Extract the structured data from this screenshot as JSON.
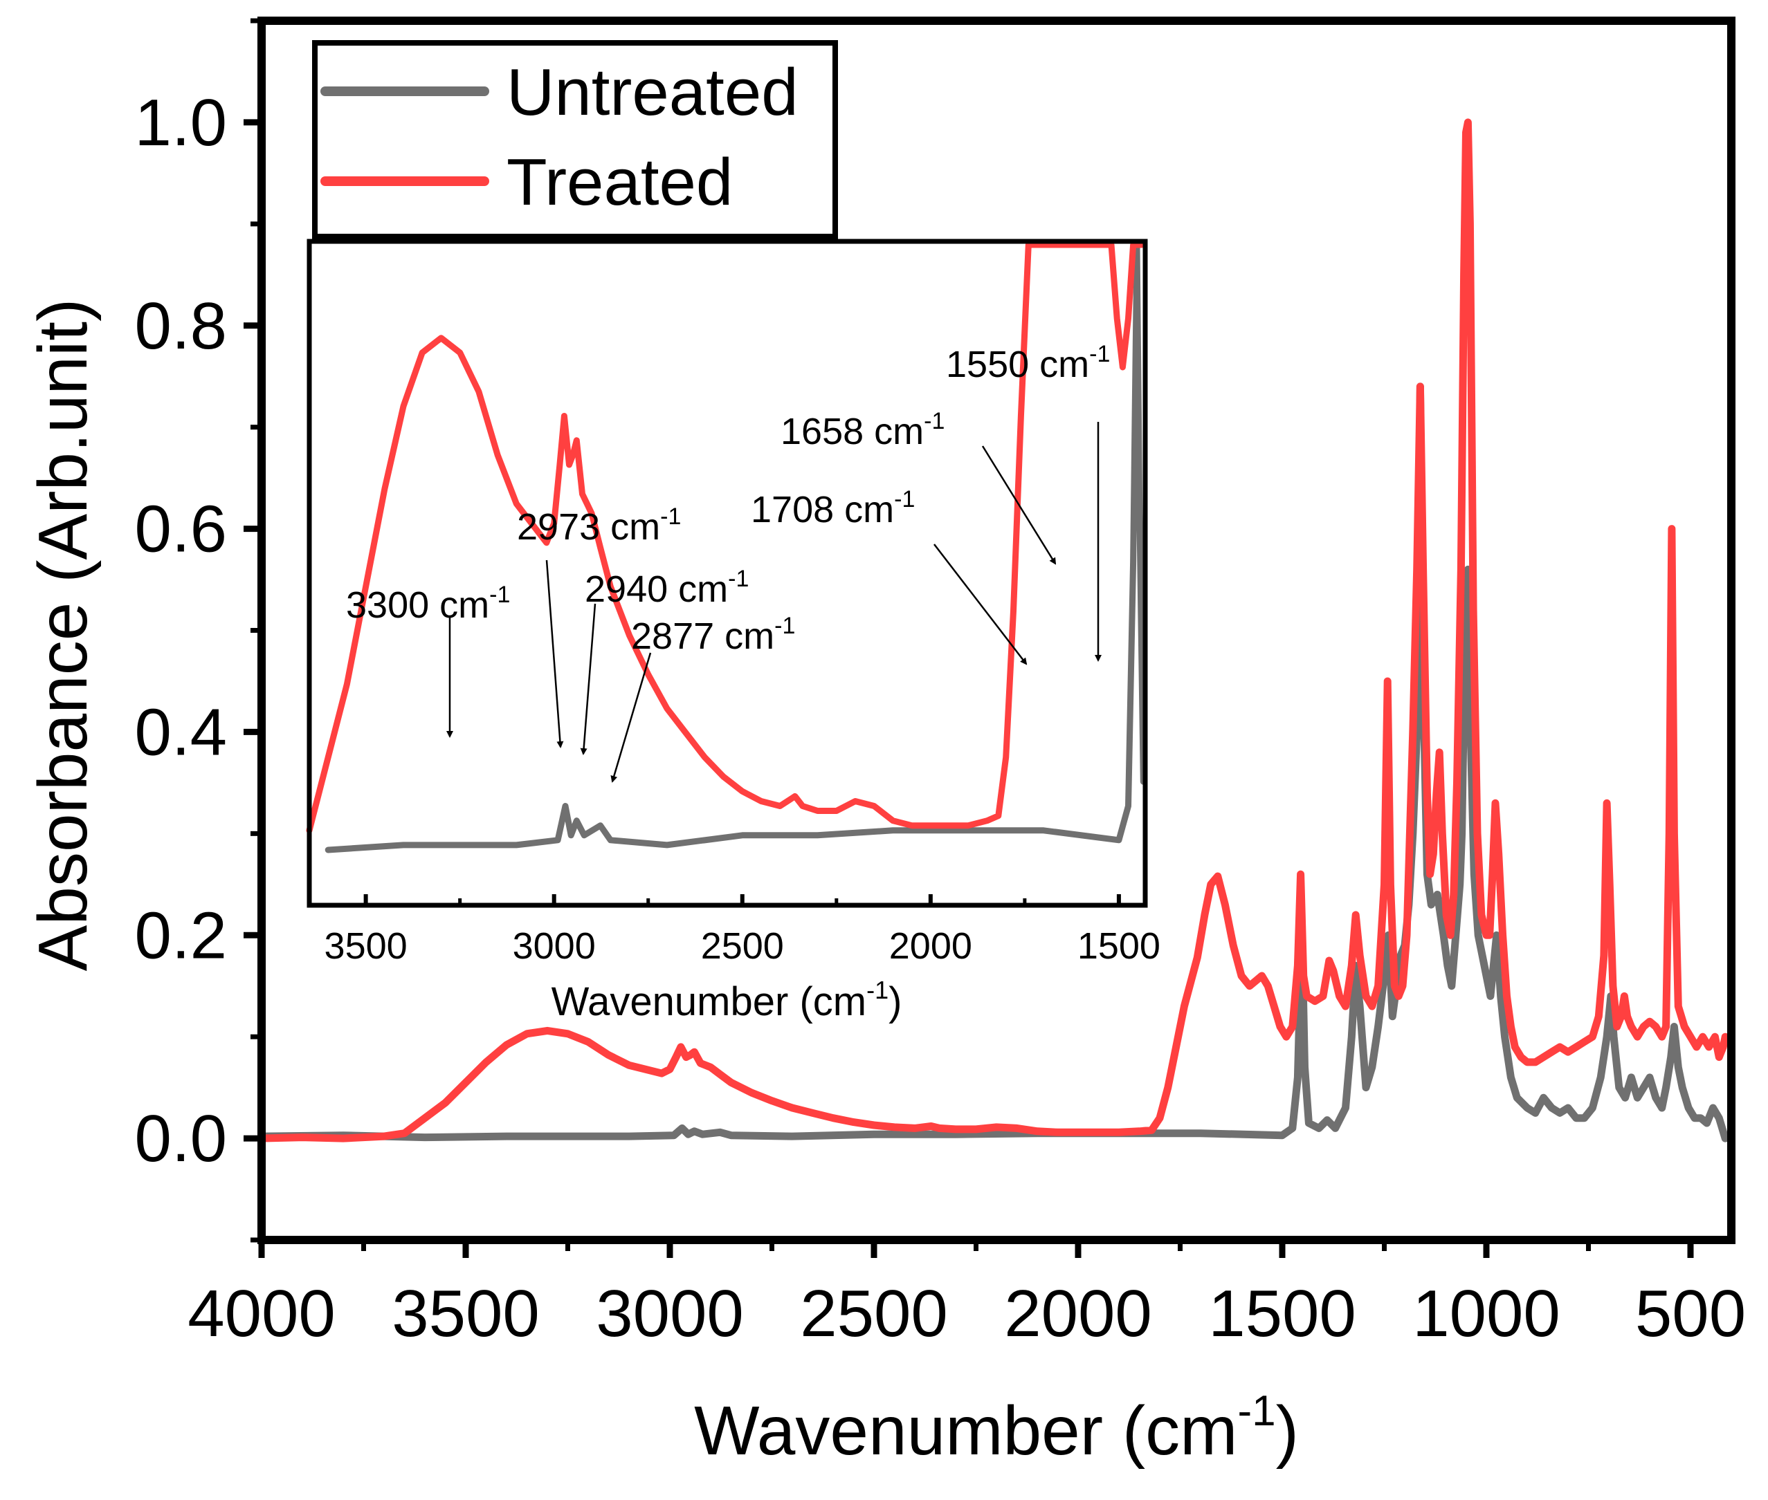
{
  "chart_data": [
    {
      "type": "line",
      "title": "",
      "xlabel": "Wavenumber (cm",
      "xlabel_sup": "-1",
      "xlabel_close": ")",
      "ylabel": "Absorbance (Arb.unit)",
      "xlim": [
        4000,
        400
      ],
      "ylim": [
        -0.1,
        1.1
      ],
      "x_ticks": [
        "4000",
        "3500",
        "3000",
        "2500",
        "2000",
        "1500",
        "1000",
        "500"
      ],
      "y_ticks": [
        "0.0",
        "0.2",
        "0.4",
        "0.6",
        "0.8",
        "1.0"
      ],
      "legend": {
        "position": "top-left",
        "entries": [
          "Untreated",
          "Treated"
        ]
      },
      "series": [
        {
          "name": "Untreated",
          "color": "#707070",
          "points": [
            [
              4000,
              0.002
            ],
            [
              3800,
              0.003
            ],
            [
              3600,
              0.001
            ],
            [
              3400,
              0.002
            ],
            [
              3200,
              0.002
            ],
            [
              3100,
              0.002
            ],
            [
              2990,
              0.003
            ],
            [
              2970,
              0.01
            ],
            [
              2955,
              0.004
            ],
            [
              2940,
              0.007
            ],
            [
              2920,
              0.004
            ],
            [
              2877,
              0.006
            ],
            [
              2850,
              0.003
            ],
            [
              2700,
              0.002
            ],
            [
              2500,
              0.004
            ],
            [
              2300,
              0.004
            ],
            [
              2100,
              0.005
            ],
            [
              1900,
              0.005
            ],
            [
              1700,
              0.005
            ],
            [
              1500,
              0.003
            ],
            [
              1475,
              0.01
            ],
            [
              1462,
              0.06
            ],
            [
              1452,
              0.21
            ],
            [
              1445,
              0.07
            ],
            [
              1435,
              0.015
            ],
            [
              1410,
              0.01
            ],
            [
              1390,
              0.018
            ],
            [
              1370,
              0.01
            ],
            [
              1345,
              0.03
            ],
            [
              1330,
              0.1
            ],
            [
              1320,
              0.17
            ],
            [
              1310,
              0.13
            ],
            [
              1295,
              0.05
            ],
            [
              1280,
              0.07
            ],
            [
              1265,
              0.11
            ],
            [
              1250,
              0.16
            ],
            [
              1240,
              0.2
            ],
            [
              1230,
              0.12
            ],
            [
              1220,
              0.15
            ],
            [
              1210,
              0.18
            ],
            [
              1200,
              0.19
            ],
            [
              1190,
              0.23
            ],
            [
              1180,
              0.3
            ],
            [
              1170,
              0.4
            ],
            [
              1162,
              0.74
            ],
            [
              1155,
              0.45
            ],
            [
              1145,
              0.26
            ],
            [
              1135,
              0.23
            ],
            [
              1120,
              0.24
            ],
            [
              1105,
              0.2
            ],
            [
              1095,
              0.17
            ],
            [
              1085,
              0.15
            ],
            [
              1075,
              0.2
            ],
            [
              1065,
              0.25
            ],
            [
              1060,
              0.3
            ],
            [
              1052,
              0.5
            ],
            [
              1045,
              0.56
            ],
            [
              1040,
              0.42
            ],
            [
              1030,
              0.26
            ],
            [
              1020,
              0.2
            ],
            [
              1010,
              0.18
            ],
            [
              1000,
              0.16
            ],
            [
              990,
              0.14
            ],
            [
              975,
              0.2
            ],
            [
              965,
              0.14
            ],
            [
              955,
              0.1
            ],
            [
              940,
              0.06
            ],
            [
              925,
              0.04
            ],
            [
              900,
              0.03
            ],
            [
              880,
              0.025
            ],
            [
              860,
              0.04
            ],
            [
              840,
              0.03
            ],
            [
              820,
              0.025
            ],
            [
              800,
              0.03
            ],
            [
              780,
              0.02
            ],
            [
              760,
              0.02
            ],
            [
              740,
              0.03
            ],
            [
              720,
              0.06
            ],
            [
              705,
              0.1
            ],
            [
              695,
              0.14
            ],
            [
              688,
              0.1
            ],
            [
              675,
              0.05
            ],
            [
              660,
              0.04
            ],
            [
              645,
              0.06
            ],
            [
              630,
              0.04
            ],
            [
              615,
              0.05
            ],
            [
              600,
              0.06
            ],
            [
              585,
              0.04
            ],
            [
              570,
              0.03
            ],
            [
              560,
              0.05
            ],
            [
              548,
              0.08
            ],
            [
              540,
              0.11
            ],
            [
              530,
              0.07
            ],
            [
              520,
              0.05
            ],
            [
              505,
              0.03
            ],
            [
              490,
              0.02
            ],
            [
              475,
              0.02
            ],
            [
              460,
              0.015
            ],
            [
              445,
              0.03
            ],
            [
              430,
              0.02
            ],
            [
              415,
              0.0
            ]
          ]
        },
        {
          "name": "Treated",
          "color": "#ff4040",
          "points": [
            [
              4000,
              0.0
            ],
            [
              3900,
              0.001
            ],
            [
              3800,
              0.0
            ],
            [
              3700,
              0.002
            ],
            [
              3650,
              0.005
            ],
            [
              3600,
              0.02
            ],
            [
              3550,
              0.035
            ],
            [
              3500,
              0.055
            ],
            [
              3450,
              0.075
            ],
            [
              3400,
              0.092
            ],
            [
              3350,
              0.103
            ],
            [
              3300,
              0.106
            ],
            [
              3250,
              0.103
            ],
            [
              3200,
              0.095
            ],
            [
              3150,
              0.082
            ],
            [
              3100,
              0.072
            ],
            [
              3060,
              0.068
            ],
            [
              3020,
              0.064
            ],
            [
              3000,
              0.068
            ],
            [
              2985,
              0.08
            ],
            [
              2973,
              0.09
            ],
            [
              2960,
              0.08
            ],
            [
              2950,
              0.082
            ],
            [
              2940,
              0.085
            ],
            [
              2925,
              0.074
            ],
            [
              2900,
              0.07
            ],
            [
              2877,
              0.063
            ],
            [
              2850,
              0.055
            ],
            [
              2800,
              0.045
            ],
            [
              2750,
              0.037
            ],
            [
              2700,
              0.03
            ],
            [
              2650,
              0.025
            ],
            [
              2600,
              0.02
            ],
            [
              2550,
              0.016
            ],
            [
              2500,
              0.013
            ],
            [
              2450,
              0.011
            ],
            [
              2400,
              0.01
            ],
            [
              2360,
              0.012
            ],
            [
              2340,
              0.01
            ],
            [
              2300,
              0.009
            ],
            [
              2250,
              0.009
            ],
            [
              2200,
              0.011
            ],
            [
              2150,
              0.01
            ],
            [
              2100,
              0.007
            ],
            [
              2050,
              0.006
            ],
            [
              2000,
              0.006
            ],
            [
              1950,
              0.006
            ],
            [
              1900,
              0.006
            ],
            [
              1850,
              0.007
            ],
            [
              1820,
              0.008
            ],
            [
              1800,
              0.02
            ],
            [
              1780,
              0.05
            ],
            [
              1760,
              0.09
            ],
            [
              1740,
              0.13
            ],
            [
              1720,
              0.16
            ],
            [
              1708,
              0.178
            ],
            [
              1690,
              0.22
            ],
            [
              1675,
              0.25
            ],
            [
              1658,
              0.258
            ],
            [
              1640,
              0.23
            ],
            [
              1620,
              0.19
            ],
            [
              1600,
              0.16
            ],
            [
              1580,
              0.15
            ],
            [
              1565,
              0.155
            ],
            [
              1550,
              0.16
            ],
            [
              1535,
              0.15
            ],
            [
              1520,
              0.13
            ],
            [
              1505,
              0.11
            ],
            [
              1490,
              0.1
            ],
            [
              1475,
              0.11
            ],
            [
              1462,
              0.17
            ],
            [
              1455,
              0.26
            ],
            [
              1448,
              0.16
            ],
            [
              1440,
              0.14
            ],
            [
              1420,
              0.135
            ],
            [
              1400,
              0.14
            ],
            [
              1385,
              0.175
            ],
            [
              1375,
              0.165
            ],
            [
              1360,
              0.14
            ],
            [
              1345,
              0.13
            ],
            [
              1330,
              0.17
            ],
            [
              1320,
              0.22
            ],
            [
              1310,
              0.18
            ],
            [
              1295,
              0.14
            ],
            [
              1280,
              0.13
            ],
            [
              1265,
              0.15
            ],
            [
              1250,
              0.25
            ],
            [
              1242,
              0.45
            ],
            [
              1235,
              0.25
            ],
            [
              1225,
              0.15
            ],
            [
              1215,
              0.14
            ],
            [
              1205,
              0.15
            ],
            [
              1195,
              0.2
            ],
            [
              1180,
              0.4
            ],
            [
              1170,
              0.56
            ],
            [
              1162,
              0.74
            ],
            [
              1155,
              0.56
            ],
            [
              1145,
              0.34
            ],
            [
              1138,
              0.26
            ],
            [
              1130,
              0.28
            ],
            [
              1122,
              0.34
            ],
            [
              1115,
              0.38
            ],
            [
              1108,
              0.3
            ],
            [
              1098,
              0.22
            ],
            [
              1088,
              0.2
            ],
            [
              1080,
              0.24
            ],
            [
              1072,
              0.35
            ],
            [
              1062,
              0.56
            ],
            [
              1055,
              0.85
            ],
            [
              1050,
              0.99
            ],
            [
              1045,
              1.0
            ],
            [
              1040,
              0.9
            ],
            [
              1032,
              0.52
            ],
            [
              1022,
              0.3
            ],
            [
              1012,
              0.22
            ],
            [
              1000,
              0.2
            ],
            [
              992,
              0.2
            ],
            [
              985,
              0.26
            ],
            [
              978,
              0.33
            ],
            [
              970,
              0.28
            ],
            [
              960,
              0.2
            ],
            [
              950,
              0.14
            ],
            [
              940,
              0.11
            ],
            [
              930,
              0.09
            ],
            [
              915,
              0.08
            ],
            [
              900,
              0.075
            ],
            [
              880,
              0.075
            ],
            [
              860,
              0.08
            ],
            [
              840,
              0.085
            ],
            [
              820,
              0.09
            ],
            [
              800,
              0.085
            ],
            [
              780,
              0.09
            ],
            [
              760,
              0.095
            ],
            [
              740,
              0.1
            ],
            [
              725,
              0.12
            ],
            [
              712,
              0.18
            ],
            [
              705,
              0.33
            ],
            [
              698,
              0.25
            ],
            [
              690,
              0.15
            ],
            [
              680,
              0.11
            ],
            [
              670,
              0.12
            ],
            [
              662,
              0.14
            ],
            [
              655,
              0.12
            ],
            [
              645,
              0.11
            ],
            [
              630,
              0.1
            ],
            [
              615,
              0.11
            ],
            [
              600,
              0.115
            ],
            [
              585,
              0.11
            ],
            [
              570,
              0.1
            ],
            [
              560,
              0.11
            ],
            [
              552,
              0.3
            ],
            [
              546,
              0.6
            ],
            [
              540,
              0.3
            ],
            [
              530,
              0.13
            ],
            [
              515,
              0.11
            ],
            [
              500,
              0.1
            ],
            [
              485,
              0.09
            ],
            [
              470,
              0.1
            ],
            [
              455,
              0.09
            ],
            [
              440,
              0.1
            ],
            [
              430,
              0.08
            ],
            [
              420,
              0.09
            ],
            [
              415,
              0.1
            ]
          ]
        }
      ]
    },
    {
      "type": "line",
      "title": "inset",
      "xlabel": "Wavenumber (cm",
      "xlabel_sup": "-1",
      "xlabel_close": ")",
      "ylabel": "",
      "xlim": [
        3650,
        1430
      ],
      "ylim": [
        0,
        0.16
      ],
      "x_ticks": [
        "3500",
        "3000",
        "2500",
        "2000",
        "1500"
      ],
      "annotations": [
        {
          "label": "3300 cm",
          "sup": "-1",
          "x": 3300
        },
        {
          "label": "2973 cm",
          "sup": "-1",
          "x": 2973
        },
        {
          "label": "2940 cm",
          "sup": "-1",
          "x": 2940
        },
        {
          "label": "2877 cm",
          "sup": "-1",
          "x": 2877
        },
        {
          "label": "1708 cm",
          "sup": "-1",
          "x": 1708
        },
        {
          "label": "1658 cm",
          "sup": "-1",
          "x": 1658
        },
        {
          "label": "1550 cm",
          "sup": "-1",
          "x": 1550
        }
      ]
    }
  ]
}
